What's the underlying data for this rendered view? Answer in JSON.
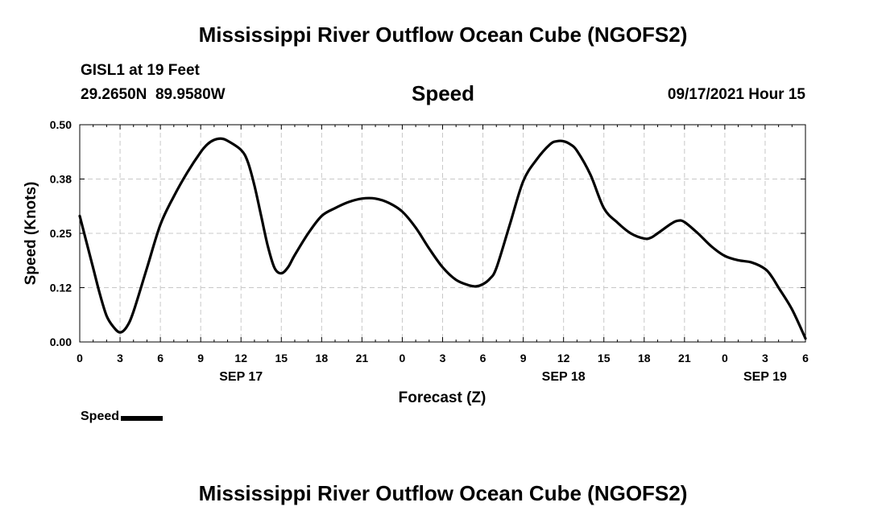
{
  "header": {
    "title": "Mississippi River Outflow Ocean Cube (NGOFS2)",
    "station": "GISL1 at 19 Feet",
    "coordinates": "29.2650N  89.9580W",
    "variable": "Speed",
    "datetime": "09/17/2021 Hour 15"
  },
  "footer": {
    "title": "Mississippi River Outflow Ocean Cube (NGOFS2)"
  },
  "legend": {
    "label": "Speed"
  },
  "chart_data": {
    "type": "line",
    "title": "Speed",
    "xlabel": "Forecast (Z)",
    "ylabel": "Speed (Knots)",
    "x_unit": "hours since 2021-09-17 00Z",
    "xlim": [
      0,
      54
    ],
    "ylim": [
      0,
      0.5
    ],
    "grid": true,
    "legend_position": "bottom-left",
    "line_color": "#000000",
    "x_ticks": [
      {
        "x": 0,
        "label": "0"
      },
      {
        "x": 3,
        "label": "3"
      },
      {
        "x": 6,
        "label": "6"
      },
      {
        "x": 9,
        "label": "9"
      },
      {
        "x": 12,
        "label": "12"
      },
      {
        "x": 15,
        "label": "15"
      },
      {
        "x": 18,
        "label": "18"
      },
      {
        "x": 21,
        "label": "21"
      },
      {
        "x": 24,
        "label": "0"
      },
      {
        "x": 27,
        "label": "3"
      },
      {
        "x": 30,
        "label": "6"
      },
      {
        "x": 33,
        "label": "9"
      },
      {
        "x": 36,
        "label": "12"
      },
      {
        "x": 39,
        "label": "15"
      },
      {
        "x": 42,
        "label": "18"
      },
      {
        "x": 45,
        "label": "21"
      },
      {
        "x": 48,
        "label": "0"
      },
      {
        "x": 51,
        "label": "3"
      },
      {
        "x": 54,
        "label": "6"
      }
    ],
    "date_labels": [
      {
        "x": 12,
        "label": "SEP 17"
      },
      {
        "x": 36,
        "label": "SEP 18"
      },
      {
        "x": 51,
        "label": "SEP 19"
      }
    ],
    "y_ticks": [
      {
        "y": 0.0,
        "label": "0.00"
      },
      {
        "y": 0.125,
        "label": "0.12"
      },
      {
        "y": 0.25,
        "label": "0.25"
      },
      {
        "y": 0.375,
        "label": "0.38"
      },
      {
        "y": 0.5,
        "label": "0.50"
      }
    ],
    "series": [
      {
        "name": "Speed",
        "x": [
          0,
          0.5,
          1,
          1.5,
          2,
          2.5,
          3,
          3.5,
          4,
          5,
          6,
          7,
          8,
          9,
          9.5,
          10,
          10.5,
          11,
          12,
          12.5,
          13,
          13.5,
          14,
          14.5,
          15,
          15.5,
          16,
          17,
          18,
          19,
          20,
          21,
          22,
          23,
          24,
          25,
          26,
          27,
          28,
          29,
          29.5,
          30,
          30.5,
          31,
          32,
          33,
          34,
          35,
          35.5,
          36,
          36.5,
          37,
          38,
          39,
          40,
          41,
          42,
          42.5,
          43,
          44,
          44.5,
          45,
          46,
          47,
          48,
          49,
          50,
          51,
          51.5,
          52,
          53,
          54
        ],
        "y": [
          0.29,
          0.23,
          0.17,
          0.11,
          0.06,
          0.035,
          0.022,
          0.035,
          0.07,
          0.17,
          0.27,
          0.335,
          0.39,
          0.437,
          0.455,
          0.465,
          0.468,
          0.463,
          0.442,
          0.415,
          0.36,
          0.29,
          0.22,
          0.17,
          0.158,
          0.172,
          0.2,
          0.25,
          0.29,
          0.308,
          0.322,
          0.33,
          0.33,
          0.32,
          0.3,
          0.263,
          0.215,
          0.172,
          0.143,
          0.13,
          0.128,
          0.133,
          0.145,
          0.17,
          0.27,
          0.37,
          0.42,
          0.455,
          0.462,
          0.462,
          0.455,
          0.44,
          0.385,
          0.308,
          0.275,
          0.25,
          0.238,
          0.24,
          0.25,
          0.272,
          0.279,
          0.276,
          0.25,
          0.22,
          0.198,
          0.188,
          0.183,
          0.168,
          0.15,
          0.125,
          0.075,
          0.008
        ]
      }
    ]
  }
}
